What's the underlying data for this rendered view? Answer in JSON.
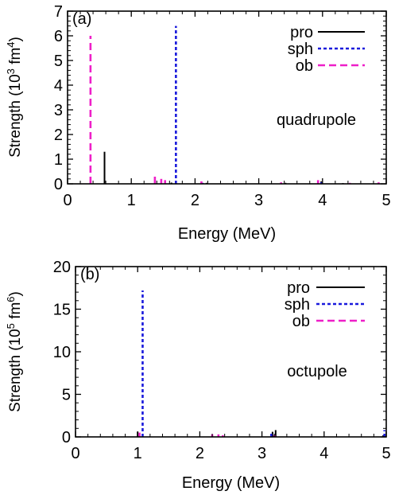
{
  "colors": {
    "pro": "#000000",
    "sph": "#1a1adc",
    "ob": "#ee1fc8"
  },
  "chart_data": [
    {
      "type": "bar",
      "panel_label": "(a)",
      "annotation": "quadrupole",
      "xlabel": "Energy (MeV)",
      "ylabel_main": "Strength (10",
      "ylabel_exp1": "3",
      "ylabel_mid": " fm",
      "ylabel_exp2": "4",
      "ylabel_end": ")",
      "xlim": [
        0,
        5
      ],
      "ylim": [
        0,
        7
      ],
      "xticks": [
        "0",
        "1",
        "2",
        "3",
        "4",
        "5"
      ],
      "yticks": [
        "0",
        "1",
        "2",
        "3",
        "4",
        "5",
        "6",
        "7"
      ],
      "legend_position": "top-right",
      "series": [
        {
          "name": "pro",
          "style": "solid",
          "x": [
            0.58,
            1.63,
            2.18,
            3.42,
            3.98,
            4.32
          ],
          "y": [
            1.3,
            0.05,
            0.04,
            0.04,
            0.1,
            0.03
          ]
        },
        {
          "name": "sph",
          "style": "dotted",
          "x": [
            1.7,
            2.12,
            3.98
          ],
          "y": [
            6.4,
            0.04,
            0.06
          ]
        },
        {
          "name": "ob",
          "style": "dashed",
          "x": [
            0.36,
            1.37,
            1.47,
            1.53,
            2.1,
            3.35,
            3.93,
            4.43,
            4.88
          ],
          "y": [
            6.0,
            0.3,
            0.2,
            0.15,
            0.1,
            0.06,
            0.15,
            0.04,
            0.06
          ]
        }
      ]
    },
    {
      "type": "bar",
      "panel_label": "(b)",
      "annotation": "octupole",
      "xlabel": "Energy (MeV)",
      "ylabel_main": "Strength (10",
      "ylabel_exp1": "5",
      "ylabel_mid": " fm",
      "ylabel_exp2": "6",
      "ylabel_end": ")",
      "xlim": [
        0,
        5
      ],
      "ylim": [
        0,
        20
      ],
      "xticks": [
        "0",
        "1",
        "2",
        "3",
        "4",
        "5"
      ],
      "yticks": [
        "0",
        "5",
        "10",
        "15",
        "20"
      ],
      "legend_position": "top-right",
      "series": [
        {
          "name": "pro",
          "style": "solid",
          "x": [
            1.0,
            3.17,
            3.22,
            4.95
          ],
          "y": [
            0.6,
            0.6,
            0.8,
            0.2
          ]
        },
        {
          "name": "sph",
          "style": "dotted",
          "x": [
            1.08,
            3.15,
            4.97
          ],
          "y": [
            17.2,
            0.6,
            0.8
          ]
        },
        {
          "name": "ob",
          "style": "dashed",
          "x": [
            1.03,
            2.2,
            2.3,
            2.37,
            3.2
          ],
          "y": [
            0.5,
            0.3,
            0.3,
            0.2,
            0.2
          ]
        }
      ]
    }
  ]
}
